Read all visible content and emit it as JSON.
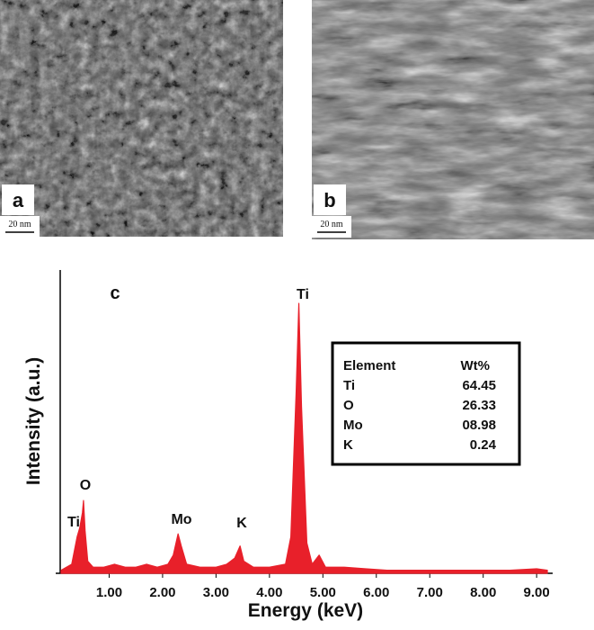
{
  "panels": [
    {
      "label": "a",
      "scale_bar": "20 nm"
    },
    {
      "label": "b",
      "scale_bar": "20 nm"
    }
  ],
  "chart_data": {
    "type": "area",
    "panel_label": "c",
    "xlabel": "Energy (keV)",
    "ylabel": "Intensity (a.u.)",
    "color": "#e8202a",
    "x": [
      0.1,
      0.2,
      0.3,
      0.4,
      0.45,
      0.5,
      0.52,
      0.55,
      0.6,
      0.7,
      0.9,
      1.1,
      1.3,
      1.5,
      1.7,
      1.9,
      2.1,
      2.2,
      2.29,
      2.35,
      2.45,
      2.7,
      3.0,
      3.2,
      3.35,
      3.45,
      3.52,
      3.7,
      4.0,
      4.3,
      4.4,
      4.5,
      4.55,
      4.6,
      4.7,
      4.8,
      4.93,
      5.05,
      5.4,
      5.8,
      6.2,
      6.6,
      7.0,
      7.5,
      8.0,
      8.5,
      9.0,
      9.2
    ],
    "values": [
      1,
      2,
      3,
      12,
      15,
      20,
      24,
      14,
      4,
      2,
      2,
      3,
      2,
      2,
      3,
      2,
      3,
      6,
      13,
      9,
      3,
      2,
      2,
      3,
      5,
      9,
      4,
      2,
      2,
      3,
      12,
      60,
      89,
      55,
      10,
      3,
      6,
      2,
      2,
      1.5,
      1,
      1,
      1,
      1,
      1,
      1,
      1.5,
      1
    ],
    "xlim": [
      0,
      9.3
    ],
    "ylim": [
      0,
      100
    ],
    "xticks": [
      {
        "value": 1,
        "label": "1.00"
      },
      {
        "value": 2,
        "label": "2.00"
      },
      {
        "value": 3,
        "label": "3.00"
      },
      {
        "value": 4,
        "label": "4.00"
      },
      {
        "value": 5,
        "label": "5.00"
      },
      {
        "value": 6,
        "label": "6.00"
      },
      {
        "value": 7,
        "label": "7.00"
      },
      {
        "value": 8,
        "label": "8.00"
      },
      {
        "value": 9,
        "label": "9.00"
      }
    ],
    "peak_labels": [
      "Ti",
      "O",
      "Mo",
      "K",
      "Ti"
    ],
    "table": {
      "header": [
        "Element",
        "Wt%"
      ],
      "rows": [
        [
          "Ti",
          "64.45"
        ],
        [
          "O",
          "26.33"
        ],
        [
          "Mo",
          "08.98"
        ],
        [
          "K",
          "0.24"
        ]
      ]
    }
  }
}
